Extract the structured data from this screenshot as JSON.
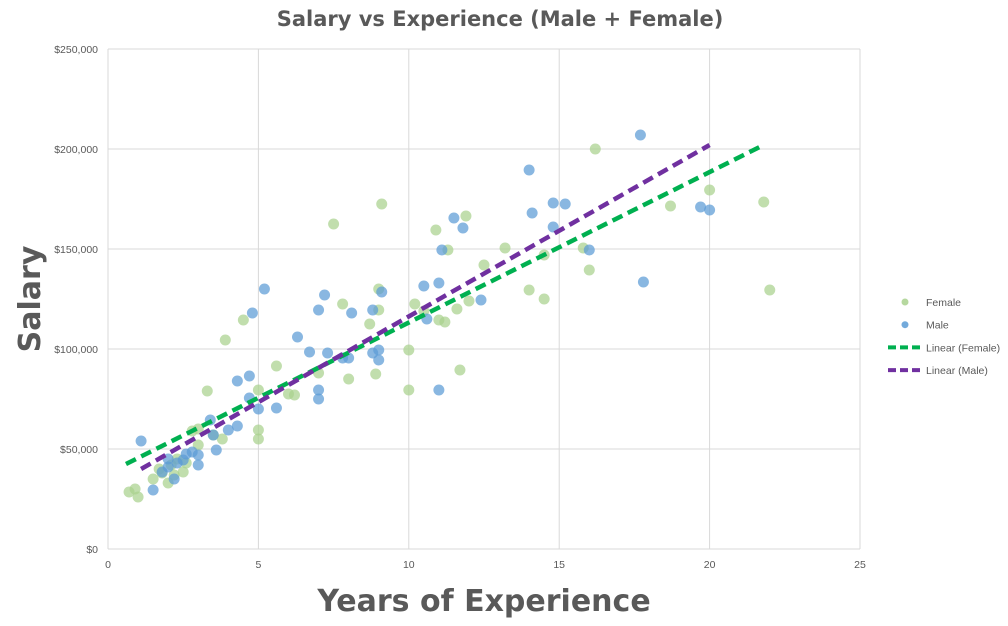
{
  "chart_data": {
    "type": "scatter",
    "title": "Salary vs Experience (Male + Female)",
    "xlabel": "Years of Experience",
    "ylabel": "Salary",
    "xlim": [
      0,
      25
    ],
    "ylim": [
      0,
      250000
    ],
    "x_ticks": [
      "0",
      "5",
      "10",
      "15",
      "20",
      "25"
    ],
    "y_ticks": [
      "$0",
      "$50,000",
      "$100,000",
      "$150,000",
      "$200,000",
      "$250,000"
    ],
    "grid": true,
    "legend_position": "right",
    "series": [
      {
        "name": "Female",
        "kind": "scatter",
        "color": "#a9d18e",
        "points": [
          [
            0.7,
            28500
          ],
          [
            0.9,
            30000
          ],
          [
            1.0,
            26000
          ],
          [
            1.5,
            35000
          ],
          [
            1.7,
            40000
          ],
          [
            1.8,
            38000
          ],
          [
            2.0,
            33000
          ],
          [
            2.1,
            42000
          ],
          [
            2.2,
            37000
          ],
          [
            2.3,
            45000
          ],
          [
            2.5,
            38500
          ],
          [
            2.6,
            43000
          ],
          [
            2.8,
            59000
          ],
          [
            3.0,
            52000
          ],
          [
            3.0,
            60000
          ],
          [
            3.3,
            79000
          ],
          [
            3.5,
            57000
          ],
          [
            3.8,
            55000
          ],
          [
            3.9,
            104500
          ],
          [
            4.5,
            114500
          ],
          [
            5.0,
            55000
          ],
          [
            5.0,
            59500
          ],
          [
            5.0,
            79500
          ],
          [
            5.6,
            91500
          ],
          [
            6.0,
            77500
          ],
          [
            6.2,
            77000
          ],
          [
            7.0,
            88000
          ],
          [
            7.5,
            162500
          ],
          [
            7.8,
            122500
          ],
          [
            8.0,
            85000
          ],
          [
            8.7,
            112500
          ],
          [
            8.9,
            87500
          ],
          [
            9.0,
            119500
          ],
          [
            9.0,
            130000
          ],
          [
            9.1,
            172500
          ],
          [
            10.0,
            99500
          ],
          [
            10.0,
            79500
          ],
          [
            10.2,
            122500
          ],
          [
            10.5,
            119000
          ],
          [
            10.9,
            159500
          ],
          [
            11.0,
            114500
          ],
          [
            11.2,
            113500
          ],
          [
            11.3,
            149500
          ],
          [
            11.6,
            120000
          ],
          [
            11.7,
            89500
          ],
          [
            11.9,
            166500
          ],
          [
            12.0,
            124000
          ],
          [
            12.5,
            142000
          ],
          [
            13.2,
            150500
          ],
          [
            14.0,
            129500
          ],
          [
            14.5,
            125000
          ],
          [
            14.5,
            147000
          ],
          [
            15.8,
            150500
          ],
          [
            16.0,
            139500
          ],
          [
            16.2,
            200000
          ],
          [
            18.7,
            171500
          ],
          [
            20.0,
            179500
          ],
          [
            21.8,
            173500
          ],
          [
            22.0,
            129500
          ]
        ]
      },
      {
        "name": "Male",
        "kind": "scatter",
        "color": "#5b9bd5",
        "points": [
          [
            1.1,
            54000
          ],
          [
            1.5,
            29500
          ],
          [
            1.8,
            38500
          ],
          [
            2.0,
            45000
          ],
          [
            2.0,
            41000
          ],
          [
            2.2,
            35000
          ],
          [
            2.3,
            43000
          ],
          [
            2.5,
            44500
          ],
          [
            2.6,
            47500
          ],
          [
            2.8,
            48500
          ],
          [
            3.0,
            47000
          ],
          [
            3.0,
            42000
          ],
          [
            3.4,
            64500
          ],
          [
            3.5,
            57000
          ],
          [
            3.6,
            49500
          ],
          [
            4.0,
            59500
          ],
          [
            4.3,
            84000
          ],
          [
            4.3,
            61500
          ],
          [
            4.7,
            75500
          ],
          [
            4.7,
            86500
          ],
          [
            4.8,
            118000
          ],
          [
            5.0,
            70000
          ],
          [
            5.2,
            130000
          ],
          [
            5.6,
            70500
          ],
          [
            6.3,
            106000
          ],
          [
            6.7,
            98500
          ],
          [
            7.0,
            75000
          ],
          [
            7.0,
            79500
          ],
          [
            7.0,
            119500
          ],
          [
            7.2,
            127000
          ],
          [
            7.3,
            98000
          ],
          [
            7.8,
            95500
          ],
          [
            8.0,
            95500
          ],
          [
            8.1,
            118000
          ],
          [
            8.8,
            98000
          ],
          [
            8.8,
            119500
          ],
          [
            9.0,
            99500
          ],
          [
            9.0,
            94500
          ],
          [
            9.1,
            128500
          ],
          [
            10.5,
            131500
          ],
          [
            10.6,
            115000
          ],
          [
            11.0,
            79500
          ],
          [
            11.0,
            133000
          ],
          [
            11.1,
            149500
          ],
          [
            11.5,
            165500
          ],
          [
            11.8,
            160500
          ],
          [
            12.4,
            124500
          ],
          [
            14.0,
            189500
          ],
          [
            14.1,
            168000
          ],
          [
            14.8,
            173000
          ],
          [
            14.8,
            161000
          ],
          [
            15.2,
            172500
          ],
          [
            16.0,
            149500
          ],
          [
            17.7,
            207000
          ],
          [
            17.8,
            133500
          ],
          [
            19.7,
            171000
          ],
          [
            20.0,
            169500
          ]
        ]
      },
      {
        "name": "Linear (Female)",
        "kind": "line",
        "color": "#00b050",
        "points": [
          [
            0.6,
            42500
          ],
          [
            21.8,
            202000
          ]
        ]
      },
      {
        "name": "Linear (Male)",
        "kind": "line",
        "color": "#7030a0",
        "points": [
          [
            1.1,
            40000
          ],
          [
            20.0,
            202000
          ]
        ]
      }
    ]
  }
}
